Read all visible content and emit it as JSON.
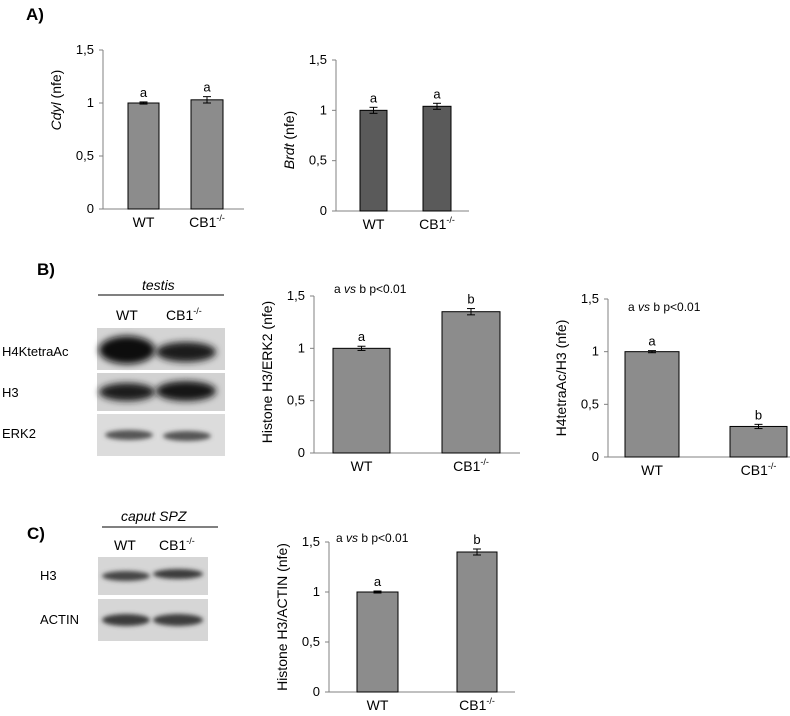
{
  "panels": [
    {
      "letter": "A)"
    },
    {
      "letter": "B)"
    },
    {
      "letter": "C)"
    }
  ],
  "blots": [
    {
      "title": "testis",
      "lanes": [
        {
          "text": "WT",
          "sup": ""
        },
        {
          "text": "CB1",
          "sup": "-/-"
        }
      ],
      "rows": [
        {
          "label": "H4KtetraAc"
        },
        {
          "label": "H3"
        },
        {
          "label": "ERK2"
        }
      ]
    },
    {
      "title": "caput SPZ",
      "lanes": [
        {
          "text": "WT",
          "sup": ""
        },
        {
          "text": "CB1",
          "sup": "-/-"
        }
      ],
      "rows": [
        {
          "label": "H3"
        },
        {
          "label": "ACTIN"
        }
      ]
    }
  ],
  "chart_data": [
    {
      "type": "bar",
      "categories": [
        {
          "text": "WT",
          "sup": ""
        },
        {
          "text": "CB1",
          "sup": "-/-"
        }
      ],
      "values": [
        1.0,
        1.03
      ],
      "errors": [
        0.01,
        0.03
      ],
      "letters": [
        "a",
        "a"
      ],
      "ylabel": {
        "gene": "Cdyl",
        "unit": "(nfe)"
      },
      "yticks": [
        "0",
        "0,5",
        "1",
        "1,5"
      ],
      "ylim": [
        0,
        1.5
      ],
      "bar_color": "#8c8c8c"
    },
    {
      "type": "bar",
      "categories": [
        {
          "text": "WT",
          "sup": ""
        },
        {
          "text": "CB1",
          "sup": "-/-"
        }
      ],
      "values": [
        1.0,
        1.04
      ],
      "errors": [
        0.03,
        0.03
      ],
      "letters": [
        "a",
        "a"
      ],
      "ylabel": {
        "gene": "Brdt",
        "unit": "(nfe)"
      },
      "yticks": [
        "0",
        "0,5",
        "1",
        "1,5"
      ],
      "ylim": [
        0,
        1.5
      ],
      "bar_color": "#5a5a5a"
    },
    {
      "type": "bar",
      "categories": [
        {
          "text": "WT",
          "sup": ""
        },
        {
          "text": "CB1",
          "sup": "-/-"
        }
      ],
      "values": [
        1.0,
        1.35
      ],
      "errors": [
        0.02,
        0.03
      ],
      "letters": [
        "a",
        "b"
      ],
      "ylabel": {
        "text": "Histone H3/ERK2  (nfe)"
      },
      "yticks": [
        "0",
        "0,5",
        "1",
        "1,5"
      ],
      "ylim": [
        0,
        1.5
      ],
      "annotation": {
        "pre": "a ",
        "vs": "vs",
        "post": " b p<0.01"
      },
      "bar_color": "#8c8c8c"
    },
    {
      "type": "bar",
      "categories": [
        {
          "text": "WT",
          "sup": ""
        },
        {
          "text": "CB1",
          "sup": "-/-"
        }
      ],
      "values": [
        1.0,
        0.29
      ],
      "errors": [
        0.01,
        0.02
      ],
      "letters": [
        "a",
        "b"
      ],
      "ylabel": {
        "text": "H4tetraAc/H3  (nfe)"
      },
      "yticks": [
        "0",
        "0,5",
        "1",
        "1,5"
      ],
      "ylim": [
        0,
        1.5
      ],
      "annotation": {
        "pre": "a ",
        "vs": "vs",
        "post": " b p<0.01"
      },
      "bar_color": "#8c8c8c"
    },
    {
      "type": "bar",
      "categories": [
        {
          "text": "WT",
          "sup": ""
        },
        {
          "text": "CB1",
          "sup": "-/-"
        }
      ],
      "values": [
        1.0,
        1.4
      ],
      "errors": [
        0.01,
        0.03
      ],
      "letters": [
        "a",
        "b"
      ],
      "ylabel": {
        "text": "Histone H3/ACTIN  (nfe)"
      },
      "yticks": [
        "0",
        "0,5",
        "1",
        "1,5"
      ],
      "ylim": [
        0,
        1.5
      ],
      "annotation": {
        "pre": "a ",
        "vs": "vs",
        "post": " b p<0.01"
      },
      "bar_color": "#8c8c8c"
    }
  ]
}
